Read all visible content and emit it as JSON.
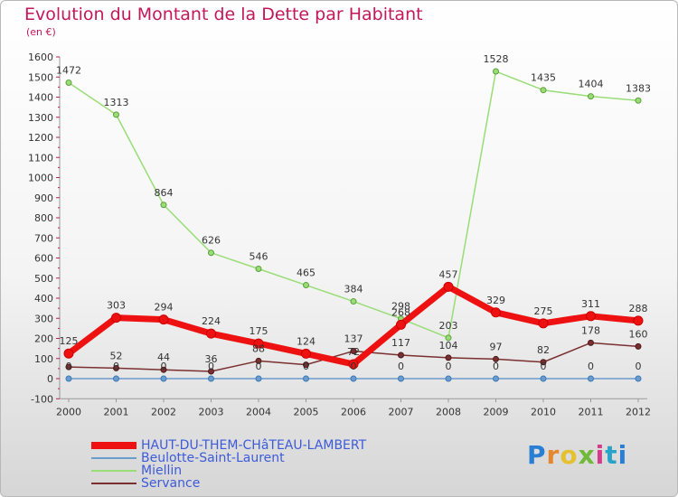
{
  "title": "Evolution du Montant de la Dette par Habitant",
  "unit_label": "(en €)",
  "chart_data": {
    "type": "line",
    "title": "Evolution du Montant de la Dette par Habitant",
    "ylabel": "(en €)",
    "x": [
      "2000",
      "2001",
      "2002",
      "2003",
      "2004",
      "2005",
      "2006",
      "2007",
      "2008",
      "2009",
      "2010",
      "2011",
      "2012"
    ],
    "ylim": [
      -100,
      1600
    ],
    "yticks": [
      -100,
      0,
      100,
      200,
      300,
      400,
      500,
      600,
      700,
      800,
      900,
      1000,
      1100,
      1200,
      1300,
      1400,
      1500,
      1600
    ],
    "grid": false,
    "legend_position": "bottom-left",
    "series": [
      {
        "name": "HAUT-DU-THEM-CHâTEAU-LAMBERT",
        "color": "#ee1111",
        "values": [
          125,
          303,
          294,
          224,
          175,
          124,
          72,
          268,
          457,
          329,
          275,
          311,
          288
        ],
        "labels": [
          "125",
          "303",
          "294",
          "224",
          "175",
          "124",
          "72",
          "268",
          "457",
          "329",
          "275",
          "311",
          "288"
        ]
      },
      {
        "name": "Beulotte-Saint-Laurent",
        "color": "#6a9ccc",
        "values": [
          0,
          0,
          0,
          0,
          0,
          0,
          0,
          0,
          0,
          0,
          0,
          0,
          0
        ],
        "labels": [
          "0",
          "0",
          "0",
          "0",
          "0",
          "0",
          "0",
          "0",
          "0",
          "0",
          "0",
          "0",
          "0"
        ]
      },
      {
        "name": "Miellin",
        "color": "#99dd77",
        "values": [
          1472,
          1313,
          864,
          626,
          546,
          465,
          384,
          298,
          203,
          1528,
          1435,
          1404,
          1383
        ],
        "labels": [
          "1472",
          "1313",
          "864",
          "626",
          "546",
          "465",
          "384",
          "298",
          "203",
          "1528",
          "1435",
          "1404",
          "1383"
        ]
      },
      {
        "name": "Servance",
        "color": "#7a3030",
        "values": [
          58,
          52,
          44,
          36,
          88,
          69,
          137,
          117,
          104,
          97,
          82,
          178,
          160
        ],
        "labels": [
          "",
          "52",
          "44",
          "36",
          "88",
          "",
          "137",
          "117",
          "104",
          "97",
          "82",
          "178",
          "160"
        ]
      }
    ]
  },
  "logo": {
    "letters": [
      "P",
      "r",
      "o",
      "x",
      "i",
      "t",
      "i"
    ]
  }
}
